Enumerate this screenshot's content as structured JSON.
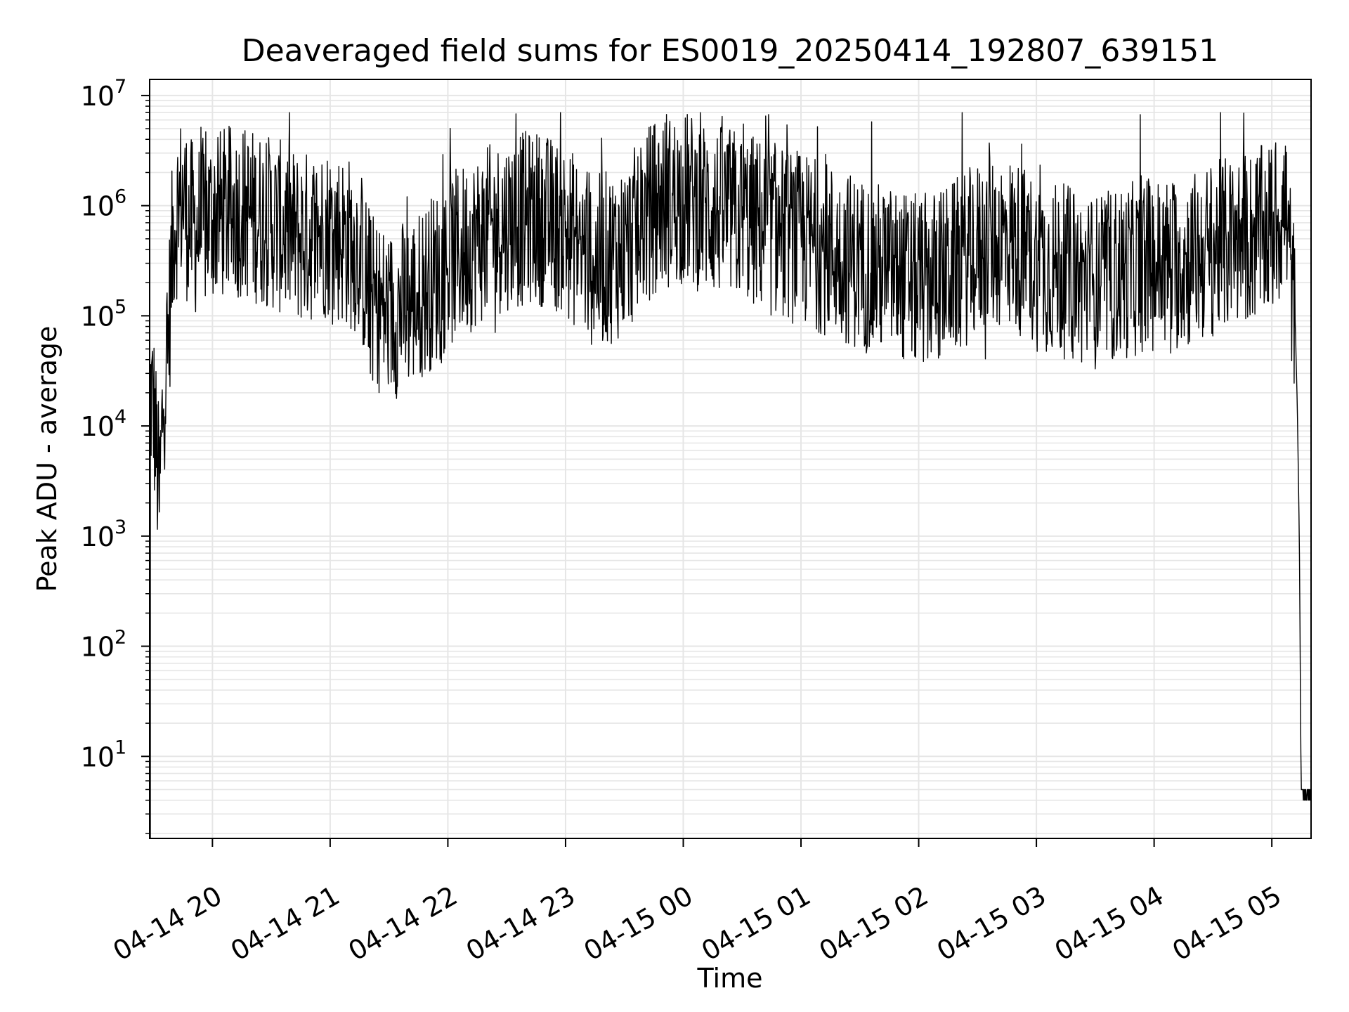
{
  "chart_data": {
    "type": "line",
    "title": "Deaveraged field sums for ES0019_20250414_192807_639151",
    "xlabel": "Time",
    "ylabel": "Peak ADU - average",
    "yscale": "log",
    "xlim": [
      "2025-04-14 19:28",
      "2025-04-15 05:20"
    ],
    "ylim": [
      1.8,
      14000000
    ],
    "grid": true,
    "x_ticks": [
      "04-14 20",
      "04-14 21",
      "04-14 22",
      "04-14 23",
      "04-15 00",
      "04-15 01",
      "04-15 02",
      "04-15 03",
      "04-15 04",
      "04-15 05"
    ],
    "y_ticks": [
      {
        "base": "10",
        "exp": "1"
      },
      {
        "base": "10",
        "exp": "2"
      },
      {
        "base": "10",
        "exp": "3"
      },
      {
        "base": "10",
        "exp": "4"
      },
      {
        "base": "10",
        "exp": "5"
      },
      {
        "base": "10",
        "exp": "6"
      },
      {
        "base": "10",
        "exp": "7"
      }
    ],
    "line_color": "#000000",
    "grid_color": "#e6e6e6",
    "series": [
      {
        "values_note": "approximate envelope of the plotted noisy series (time, value)",
        "x": [
          "19:28",
          "19:30",
          "19:33",
          "19:35",
          "19:37",
          "19:40",
          "19:42",
          "19:45",
          "19:48",
          "19:52",
          "20:00",
          "20:15",
          "20:30",
          "20:45",
          "21:00",
          "21:15",
          "21:20",
          "21:30",
          "21:45",
          "22:00",
          "22:15",
          "22:30",
          "22:45",
          "23:00",
          "23:15",
          "23:30",
          "23:45",
          "00:00",
          "00:15",
          "00:30",
          "00:45",
          "01:00",
          "01:15",
          "01:30",
          "01:45",
          "02:00",
          "02:15",
          "02:30",
          "02:45",
          "03:00",
          "03:15",
          "03:30",
          "03:45",
          "04:00",
          "04:15",
          "04:30",
          "04:45",
          "05:00",
          "05:07",
          "05:12",
          "05:13",
          "05:14",
          "05:15",
          "05:20"
        ],
        "y": [
          20000,
          15000,
          2000,
          20000,
          40000,
          600000,
          900000,
          1200000,
          700000,
          600000,
          800000,
          900000,
          700000,
          500000,
          600000,
          400000,
          150000,
          100000,
          150000,
          300000,
          500000,
          700000,
          800000,
          600000,
          300000,
          400000,
          1000000,
          1200000,
          900000,
          800000,
          600000,
          500000,
          400000,
          300000,
          250000,
          200000,
          250000,
          400000,
          500000,
          300000,
          250000,
          200000,
          250000,
          300000,
          300000,
          400000,
          500000,
          600000,
          1000000,
          80000,
          15000,
          1000,
          4,
          4
        ]
      }
    ]
  }
}
